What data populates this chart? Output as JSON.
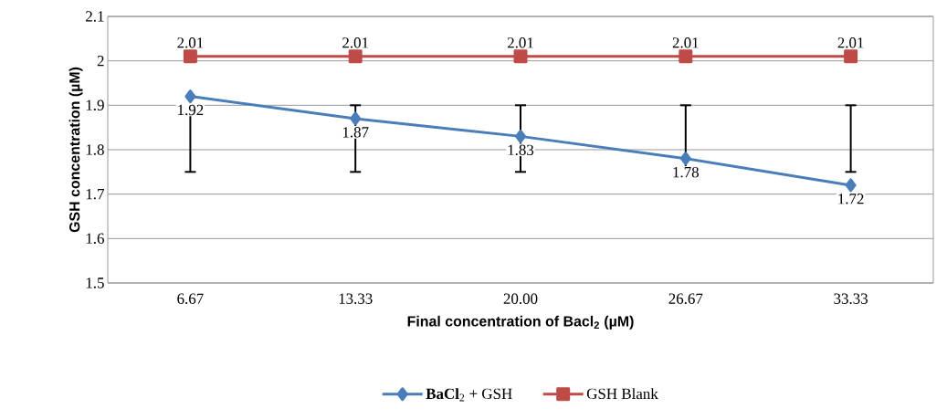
{
  "chart_data": {
    "type": "line",
    "xlabel": "Final concentration of Bacl$_{2}$ (µM)",
    "ylabel": "GSH concentration (µM)",
    "categories": [
      "6.67",
      "13.33",
      "20.00",
      "26.67",
      "33.33"
    ],
    "series": [
      {
        "name": "**BaCl**$_{2}$ + GSH",
        "color": "#4a7ebb",
        "marker": "diamond",
        "values": [
          1.92,
          1.87,
          1.83,
          1.78,
          1.72
        ],
        "errors": [
          [
            1.75,
            1.9
          ],
          [
            1.75,
            1.9
          ],
          [
            1.75,
            1.9
          ],
          [
            1.75,
            1.9
          ],
          [
            1.75,
            1.9
          ]
        ]
      },
      {
        "name": "GSH Blank",
        "color": "#be4b48",
        "marker": "square",
        "values": [
          2.01,
          2.01,
          2.01,
          2.01,
          2.01
        ]
      }
    ],
    "ylim": [
      1.5,
      2.1
    ],
    "yticks": [
      1.5,
      1.6,
      1.7,
      1.8,
      1.9,
      2,
      2.1
    ],
    "grid": "y",
    "data_labels": true,
    "legend": "bottom"
  }
}
